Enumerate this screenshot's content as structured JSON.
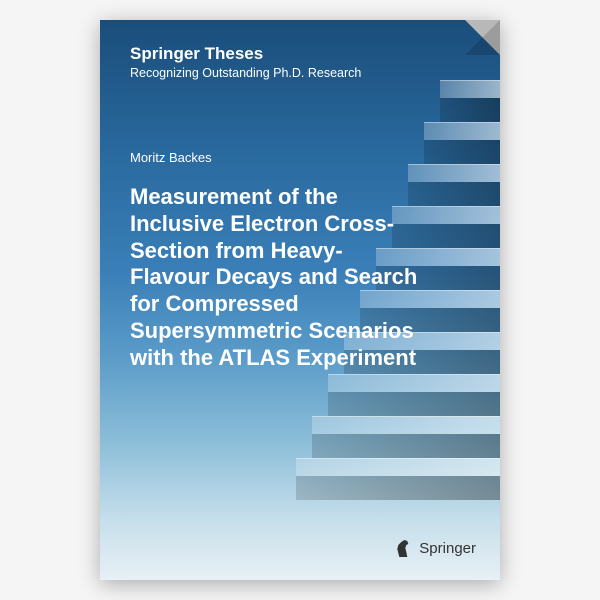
{
  "series": {
    "title": "Springer Theses",
    "subtitle": "Recognizing Outstanding Ph.D. Research"
  },
  "author": "Moritz Backes",
  "title": "Measurement of the Inclusive Electron Cross-Section from Heavy-Flavour Decays and Search for Compressed Supersymmetric Scenarios with the ATLAS Experiment",
  "publisher": "Springer",
  "colors": {
    "gradient_top": "#1a4d7a",
    "gradient_bottom": "#e8f0f5",
    "text": "#ffffff",
    "logo_text": "#333333"
  },
  "stairs": {
    "step_count": 10,
    "step_height": 18,
    "riser_height": 24,
    "start_width": 60,
    "width_increment": 16
  }
}
